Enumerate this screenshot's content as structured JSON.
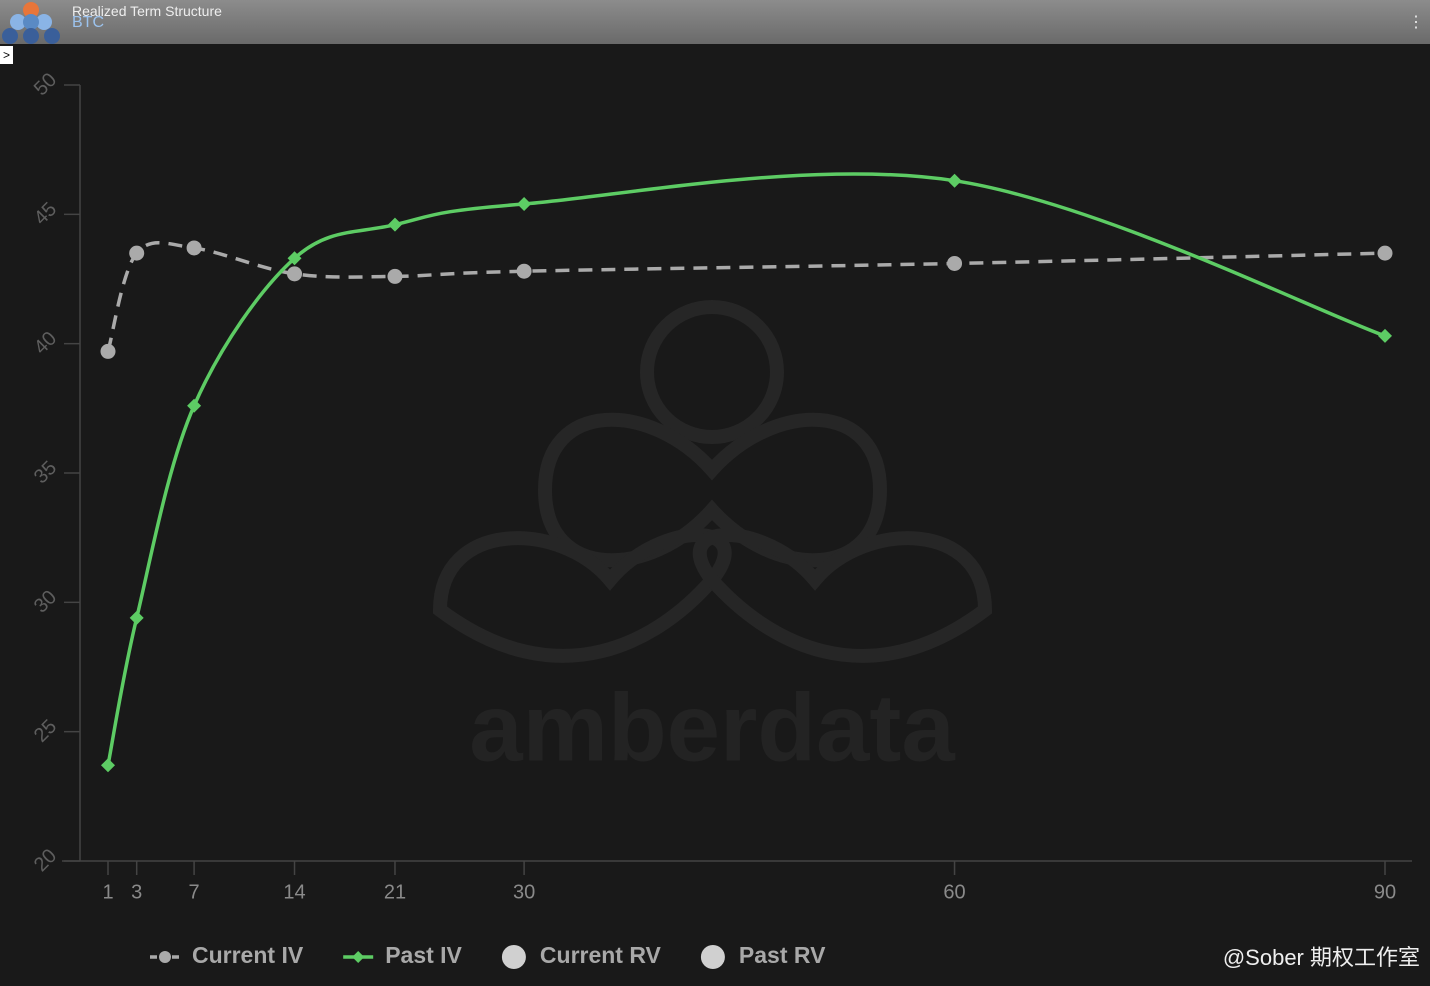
{
  "header": {
    "title": "Realized Term Structure",
    "subtitle": "BTC"
  },
  "watermark": "amberdata",
  "credit": "@Sober 期权工作室",
  "chart_data": {
    "type": "line",
    "x": [
      1,
      3,
      7,
      14,
      21,
      30,
      60,
      90
    ],
    "xlim": [
      1,
      90
    ],
    "xticks": [
      1,
      3,
      7,
      14,
      21,
      30,
      60,
      90
    ],
    "ylim": [
      20,
      50
    ],
    "yticks": [
      20,
      25,
      30,
      35,
      40,
      45,
      50
    ],
    "series": [
      {
        "name": "Current IV",
        "color": "#aaaaaa",
        "dash": true,
        "marker": "circle",
        "values": [
          39.7,
          43.5,
          43.7,
          42.7,
          42.6,
          42.8,
          43.1,
          43.5
        ]
      },
      {
        "name": "Past IV",
        "color": "#5dcc64",
        "dash": false,
        "marker": "diamond",
        "values": [
          23.7,
          29.4,
          37.6,
          43.3,
          44.6,
          45.4,
          46.3,
          40.3
        ]
      },
      {
        "name": "Current RV",
        "color": "#d0d0d0",
        "dash": false,
        "marker": "circle",
        "values": [
          null,
          null,
          null,
          null,
          null,
          null,
          null,
          null
        ]
      },
      {
        "name": "Past RV",
        "color": "#d0d0d0",
        "dash": false,
        "marker": "circle",
        "values": [
          null,
          null,
          null,
          null,
          null,
          null,
          null,
          null
        ]
      }
    ]
  }
}
